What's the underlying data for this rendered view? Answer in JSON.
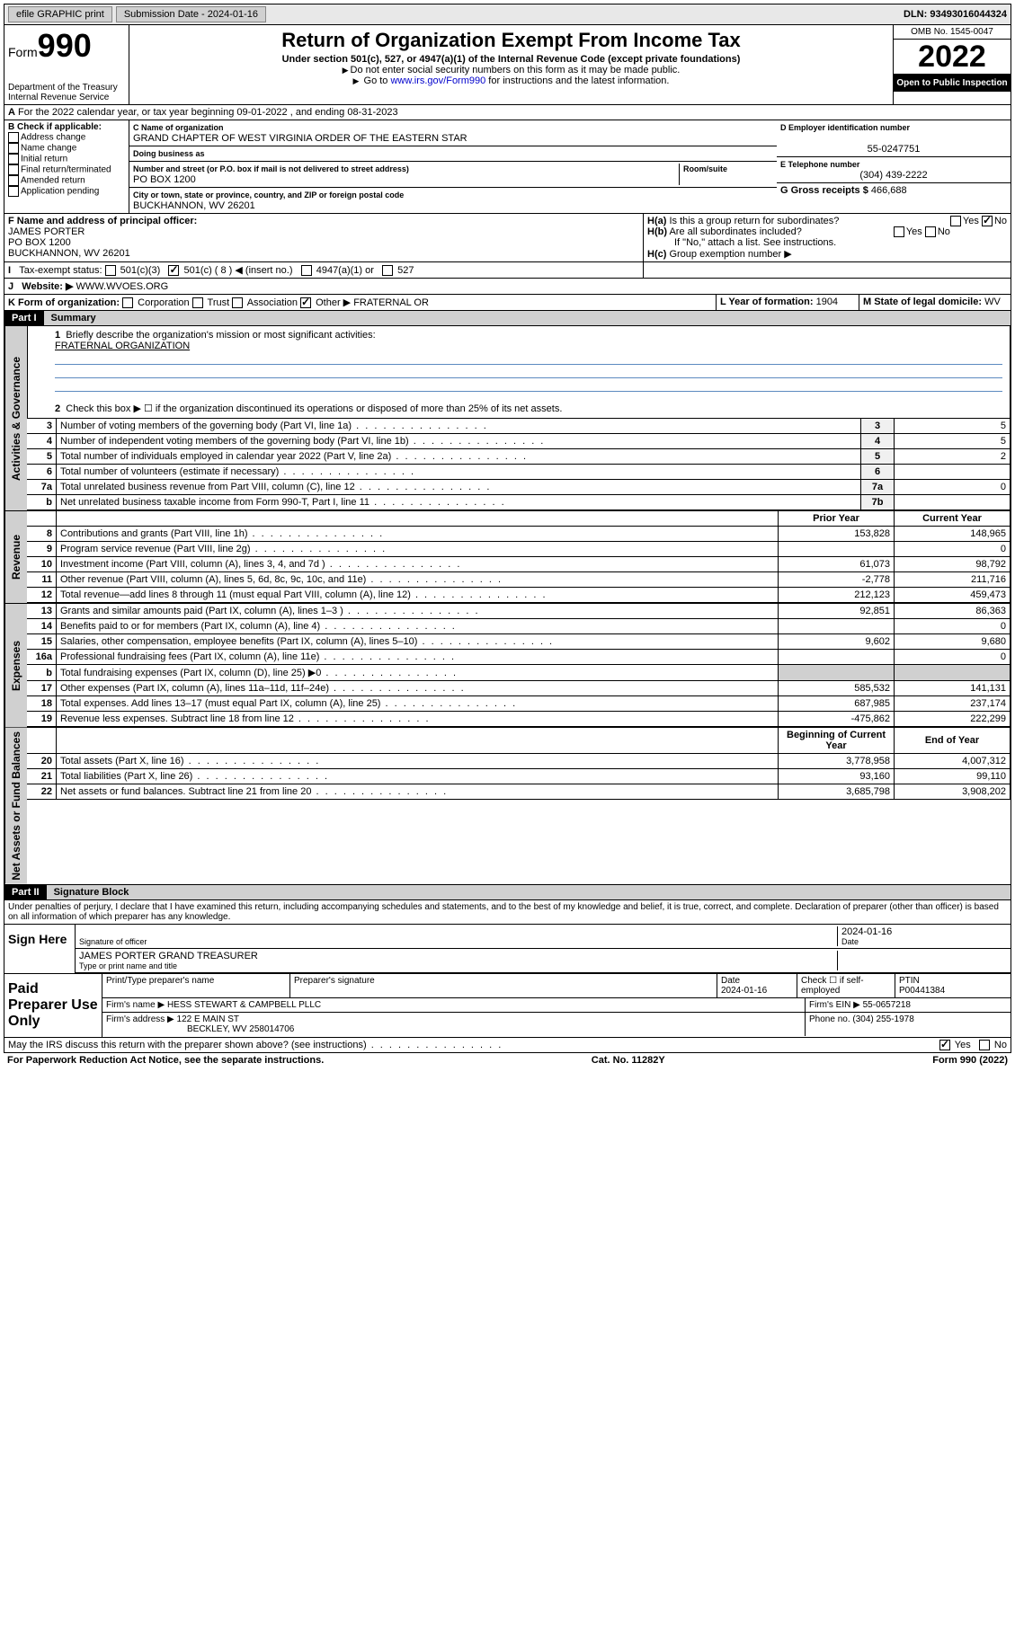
{
  "topbar": {
    "efile": "efile GRAPHIC print",
    "submission_label": "Submission Date - 2024-01-16",
    "dln": "DLN: 93493016044324"
  },
  "header": {
    "form_label": "Form",
    "form_number": "990",
    "dept": "Department of the Treasury",
    "irs": "Internal Revenue Service",
    "title": "Return of Organization Exempt From Income Tax",
    "subtitle": "Under section 501(c), 527, or 4947(a)(1) of the Internal Revenue Code (except private foundations)",
    "note1": "Do not enter social security numbers on this form as it may be made public.",
    "note2_pre": "Go to ",
    "note2_link": "www.irs.gov/Form990",
    "note2_post": " for instructions and the latest information.",
    "omb": "OMB No. 1545-0047",
    "year": "2022",
    "open": "Open to Public Inspection"
  },
  "lineA": "For the 2022 calendar year, or tax year beginning 09-01-2022   , and ending 08-31-2023",
  "sectionB": {
    "label": "B Check if applicable:",
    "opts": [
      "Address change",
      "Name change",
      "Initial return",
      "Final return/terminated",
      "Amended return",
      "Application pending"
    ]
  },
  "sectionC": {
    "name_label": "C Name of organization",
    "name": "GRAND CHAPTER OF WEST VIRGINIA ORDER OF THE EASTERN STAR",
    "dba_label": "Doing business as",
    "dba": "",
    "addr_label": "Number and street (or P.O. box if mail is not delivered to street address)",
    "room_label": "Room/suite",
    "addr": "PO BOX 1200",
    "city_label": "City or town, state or province, country, and ZIP or foreign postal code",
    "city": "BUCKHANNON, WV  26201"
  },
  "sectionD": {
    "ein_label": "D Employer identification number",
    "ein": "55-0247751",
    "phone_label": "E Telephone number",
    "phone": "(304) 439-2222",
    "gross_label": "G Gross receipts $",
    "gross": "466,688"
  },
  "sectionF": {
    "label": "F Name and address of principal officer:",
    "name": "JAMES PORTER",
    "addr1": "PO BOX 1200",
    "addr2": "BUCKHANNON, WV  26201"
  },
  "sectionH": {
    "ha": "Is this a group return for subordinates?",
    "hb": "Are all subordinates included?",
    "hb_note": "If \"No,\" attach a list. See instructions.",
    "hc": "Group exemption number ▶"
  },
  "sectionI": {
    "label": "Tax-exempt status:",
    "insert": "501(c) ( 8 ) ◀ (insert no.)"
  },
  "sectionJ": {
    "label": "Website: ▶",
    "value": "WWW.WVOES.ORG"
  },
  "sectionK": {
    "label": "K Form of organization:",
    "other": "Other ▶",
    "other_val": "FRATERNAL OR"
  },
  "sectionL": {
    "label": "L Year of formation:",
    "value": "1904"
  },
  "sectionM": {
    "label": "M State of legal domicile:",
    "value": "WV"
  },
  "part1": {
    "header": "Part I",
    "title": "Summary",
    "line1_label": "Briefly describe the organization's mission or most significant activities:",
    "line1_value": "FRATERNAL ORGANIZATION",
    "line2": "Check this box ▶ ☐  if the organization discontinued its operations or disposed of more than 25% of its net assets.",
    "governance_label": "Activities & Governance",
    "revenue_label": "Revenue",
    "expenses_label": "Expenses",
    "netassets_label": "Net Assets or Fund Balances",
    "prior_year": "Prior Year",
    "current_year": "Current Year",
    "begin_year": "Beginning of Current Year",
    "end_year": "End of Year",
    "rows_gov": [
      {
        "n": "3",
        "desc": "Number of voting members of the governing body (Part VI, line 1a)",
        "box": "3",
        "v": "5"
      },
      {
        "n": "4",
        "desc": "Number of independent voting members of the governing body (Part VI, line 1b)",
        "box": "4",
        "v": "5"
      },
      {
        "n": "5",
        "desc": "Total number of individuals employed in calendar year 2022 (Part V, line 2a)",
        "box": "5",
        "v": "2"
      },
      {
        "n": "6",
        "desc": "Total number of volunteers (estimate if necessary)",
        "box": "6",
        "v": ""
      },
      {
        "n": "7a",
        "desc": "Total unrelated business revenue from Part VIII, column (C), line 12",
        "box": "7a",
        "v": "0"
      },
      {
        "n": "b",
        "desc": "Net unrelated business taxable income from Form 990-T, Part I, line 11",
        "box": "7b",
        "v": ""
      }
    ],
    "rows_rev": [
      {
        "n": "8",
        "desc": "Contributions and grants (Part VIII, line 1h)",
        "p": "153,828",
        "c": "148,965"
      },
      {
        "n": "9",
        "desc": "Program service revenue (Part VIII, line 2g)",
        "p": "",
        "c": "0"
      },
      {
        "n": "10",
        "desc": "Investment income (Part VIII, column (A), lines 3, 4, and 7d )",
        "p": "61,073",
        "c": "98,792"
      },
      {
        "n": "11",
        "desc": "Other revenue (Part VIII, column (A), lines 5, 6d, 8c, 9c, 10c, and 11e)",
        "p": "-2,778",
        "c": "211,716"
      },
      {
        "n": "12",
        "desc": "Total revenue—add lines 8 through 11 (must equal Part VIII, column (A), line 12)",
        "p": "212,123",
        "c": "459,473"
      }
    ],
    "rows_exp": [
      {
        "n": "13",
        "desc": "Grants and similar amounts paid (Part IX, column (A), lines 1–3 )",
        "p": "92,851",
        "c": "86,363"
      },
      {
        "n": "14",
        "desc": "Benefits paid to or for members (Part IX, column (A), line 4)",
        "p": "",
        "c": "0"
      },
      {
        "n": "15",
        "desc": "Salaries, other compensation, employee benefits (Part IX, column (A), lines 5–10)",
        "p": "9,602",
        "c": "9,680"
      },
      {
        "n": "16a",
        "desc": "Professional fundraising fees (Part IX, column (A), line 11e)",
        "p": "",
        "c": "0"
      },
      {
        "n": "b",
        "desc": "Total fundraising expenses (Part IX, column (D), line 25) ▶0",
        "p": "shade",
        "c": "shade"
      },
      {
        "n": "17",
        "desc": "Other expenses (Part IX, column (A), lines 11a–11d, 11f–24e)",
        "p": "585,532",
        "c": "141,131"
      },
      {
        "n": "18",
        "desc": "Total expenses. Add lines 13–17 (must equal Part IX, column (A), line 25)",
        "p": "687,985",
        "c": "237,174"
      },
      {
        "n": "19",
        "desc": "Revenue less expenses. Subtract line 18 from line 12",
        "p": "-475,862",
        "c": "222,299"
      }
    ],
    "rows_net": [
      {
        "n": "20",
        "desc": "Total assets (Part X, line 16)",
        "p": "3,778,958",
        "c": "4,007,312"
      },
      {
        "n": "21",
        "desc": "Total liabilities (Part X, line 26)",
        "p": "93,160",
        "c": "99,110"
      },
      {
        "n": "22",
        "desc": "Net assets or fund balances. Subtract line 21 from line 20",
        "p": "3,685,798",
        "c": "3,908,202"
      }
    ]
  },
  "part2": {
    "header": "Part II",
    "title": "Signature Block",
    "penalties": "Under penalties of perjury, I declare that I have examined this return, including accompanying schedules and statements, and to the best of my knowledge and belief, it is true, correct, and complete. Declaration of preparer (other than officer) is based on all information of which preparer has any knowledge.",
    "sign_here": "Sign Here",
    "sig_officer": "Signature of officer",
    "date": "Date",
    "date_val": "2024-01-16",
    "name_title": "JAMES PORTER  GRAND TREASURER",
    "name_title_label": "Type or print name and title",
    "paid": "Paid Preparer Use Only",
    "prep_name_label": "Print/Type preparer's name",
    "prep_sig_label": "Preparer's signature",
    "prep_date_label": "Date",
    "prep_date": "2024-01-16",
    "check_if": "Check ☐ if self-employed",
    "ptin_label": "PTIN",
    "ptin": "P00441384",
    "firm_name_label": "Firm's name    ▶",
    "firm_name": "HESS STEWART & CAMPBELL PLLC",
    "firm_ein_label": "Firm's EIN ▶",
    "firm_ein": "55-0657218",
    "firm_addr_label": "Firm's address ▶",
    "firm_addr1": "122 E MAIN ST",
    "firm_addr2": "BECKLEY, WV  258014706",
    "firm_phone_label": "Phone no.",
    "firm_phone": "(304) 255-1978",
    "irs_discuss": "May the IRS discuss this return with the preparer shown above? (see instructions)"
  },
  "footer": {
    "left": "For Paperwork Reduction Act Notice, see the separate instructions.",
    "mid": "Cat. No. 11282Y",
    "right": "Form 990 (2022)"
  }
}
